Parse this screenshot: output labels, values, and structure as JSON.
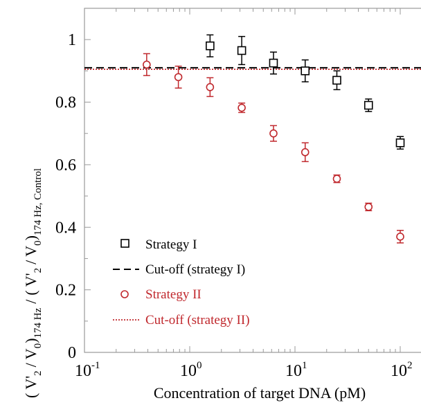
{
  "chart_data": {
    "type": "scatter",
    "xlabel": "Concentration of target DNA (pM)",
    "ylabel": {
      "open": "(",
      "v2prime": "V'",
      "sub2": "2",
      "slash": "/",
      "v0": "V",
      "sub0": "0",
      "close": ")",
      "sub_freq": "174 Hz",
      "sub_freq_control": "174 Hz, Control"
    },
    "x_scale": "log",
    "xlim": [
      0.1,
      100
    ],
    "ylim": [
      0,
      1.1
    ],
    "x_ticks": [
      {
        "value": 0.1,
        "base": "10",
        "exp": "-1"
      },
      {
        "value": 1,
        "base": "10",
        "exp": "0"
      },
      {
        "value": 10,
        "base": "10",
        "exp": "1"
      },
      {
        "value": 100,
        "base": "10",
        "exp": "2"
      }
    ],
    "y_ticks": [
      {
        "value": 0,
        "label": "0"
      },
      {
        "value": 0.2,
        "label": "0.2"
      },
      {
        "value": 0.4,
        "label": "0.4"
      },
      {
        "value": 0.6,
        "label": "0.6"
      },
      {
        "value": 0.8,
        "label": "0.8"
      },
      {
        "value": 1.0,
        "label": "1"
      }
    ],
    "grid": false,
    "legend_position": "bottom-left",
    "series": [
      {
        "name": "Strategy I",
        "marker": "square",
        "color": "#000000",
        "x": [
          1.56,
          3.12,
          6.25,
          12.5,
          25,
          50,
          100
        ],
        "y": [
          0.98,
          0.965,
          0.925,
          0.9,
          0.87,
          0.79,
          0.67
        ],
        "err": [
          0.035,
          0.045,
          0.035,
          0.035,
          0.03,
          0.02,
          0.02
        ]
      },
      {
        "name": "Strategy II",
        "marker": "circle",
        "color": "#c0282d",
        "x": [
          0.39,
          0.78,
          1.56,
          3.12,
          6.25,
          12.5,
          25,
          50,
          100
        ],
        "y": [
          0.92,
          0.88,
          0.848,
          0.782,
          0.7,
          0.64,
          0.555,
          0.465,
          0.37
        ],
        "err": [
          0.035,
          0.035,
          0.03,
          0.015,
          0.025,
          0.03,
          0.012,
          0.012,
          0.02
        ]
      }
    ],
    "reference_lines": [
      {
        "name": "Cut-off (strategy I)",
        "y": 0.91,
        "color": "#000000",
        "style": "dashed"
      },
      {
        "name": "Cut-off (strategy II)",
        "y": 0.905,
        "color": "#c0282d",
        "style": "dotted"
      }
    ],
    "colors": {
      "strategy_1": "#000000",
      "strategy_2": "#c0282d"
    }
  }
}
